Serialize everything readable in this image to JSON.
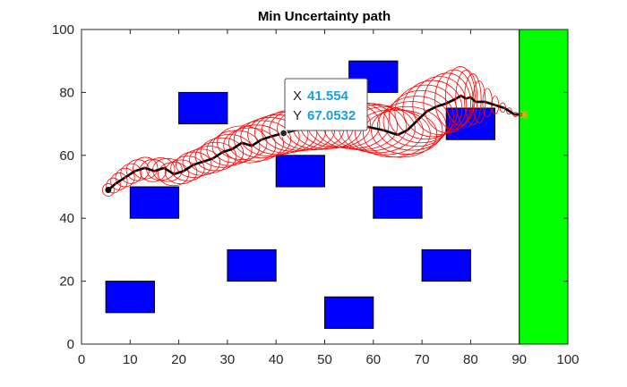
{
  "chart_data": {
    "type": "scatter",
    "title": "Min Uncertainty path",
    "xlabel": "",
    "ylabel": "",
    "xlim": [
      0,
      100
    ],
    "ylim": [
      0,
      100
    ],
    "x_ticks": [
      0,
      10,
      20,
      30,
      40,
      50,
      60,
      70,
      80,
      90,
      100
    ],
    "y_ticks": [
      0,
      20,
      40,
      60,
      80,
      100
    ],
    "grid": false,
    "obstacles": [
      {
        "x": [
          10,
          20
        ],
        "y": [
          40,
          50
        ]
      },
      {
        "x": [
          5,
          15
        ],
        "y": [
          10,
          20
        ]
      },
      {
        "x": [
          20,
          30
        ],
        "y": [
          70,
          80
        ]
      },
      {
        "x": [
          30,
          40
        ],
        "y": [
          20,
          30
        ]
      },
      {
        "x": [
          40,
          50
        ],
        "y": [
          50,
          60
        ]
      },
      {
        "x": [
          50,
          60
        ],
        "y": [
          5,
          15
        ]
      },
      {
        "x": [
          55,
          65
        ],
        "y": [
          80,
          90
        ]
      },
      {
        "x": [
          60,
          70
        ],
        "y": [
          40,
          50
        ]
      },
      {
        "x": [
          70,
          80
        ],
        "y": [
          20,
          30
        ]
      },
      {
        "x": [
          75,
          85
        ],
        "y": [
          65,
          75
        ]
      }
    ],
    "goal_region": {
      "x": [
        90,
        100
      ],
      "y": [
        0,
        100
      ]
    },
    "path": {
      "x": [
        5.5,
        7,
        9,
        11,
        13,
        15,
        17,
        19,
        21,
        23,
        25,
        27,
        29,
        31,
        33,
        35,
        37,
        39,
        41.554,
        44,
        47,
        50,
        53,
        56,
        59,
        62,
        65,
        67,
        69,
        71,
        73,
        75,
        77,
        78,
        79,
        80,
        81,
        83,
        85,
        87,
        89,
        91
      ],
      "y": [
        49,
        51,
        53,
        55,
        56,
        55,
        56,
        54,
        55,
        57,
        58,
        59,
        61,
        62,
        64,
        63,
        65,
        66,
        67.05,
        68,
        68.5,
        69,
        70,
        69.5,
        69,
        68,
        66.5,
        68,
        71,
        74,
        75.5,
        76.5,
        78,
        79,
        78,
        78.5,
        77,
        77,
        76,
        75,
        73,
        73
      ],
      "color": "#000000",
      "marker_color": "#cc0000"
    },
    "uncertainty_ellipses": {
      "color": "#ff0000",
      "rx": [
        1.2,
        1.6,
        2.0,
        2.3,
        2.6,
        2.9,
        3.1,
        3.3,
        3.6,
        3.9,
        4.2,
        4.5,
        4.9,
        5.3,
        5.7,
        6.0,
        6.3,
        6.6,
        6.8,
        7.0,
        7.2,
        7.5,
        7.6,
        7.8,
        7.8,
        7.6,
        7.2,
        6.8,
        6.5,
        6.0,
        5.0,
        3.5,
        2.2,
        1.4,
        0.9,
        0.6,
        0.5,
        0.5
      ],
      "ry": [
        2.0,
        2.6,
        3.0,
        3.3,
        3.5,
        3.6,
        3.7,
        3.8,
        4.0,
        4.2,
        4.5,
        4.8,
        5.2,
        5.5,
        5.8,
        6.1,
        6.4,
        6.6,
        6.8,
        7.0,
        7.2,
        7.4,
        7.5,
        7.6,
        7.6,
        7.5,
        7.6,
        8.0,
        8.5,
        9.0,
        9.5,
        9.5,
        9.0,
        7.5,
        4.0,
        1.6,
        0.8,
        0.5
      ]
    },
    "start": {
      "x": 5.5,
      "y": 49,
      "color": "#000000"
    },
    "end": {
      "x": 91,
      "y": 73,
      "color": "#f5a623"
    },
    "colors": {
      "obstacle": "#0000ff",
      "goal": "#00ff00",
      "edge": "#000000"
    },
    "datatip": {
      "x": 41.554,
      "y": 67.0532,
      "x_label": "X",
      "y_label": "Y",
      "x_value": "41.554",
      "y_value": "67.0532"
    }
  }
}
